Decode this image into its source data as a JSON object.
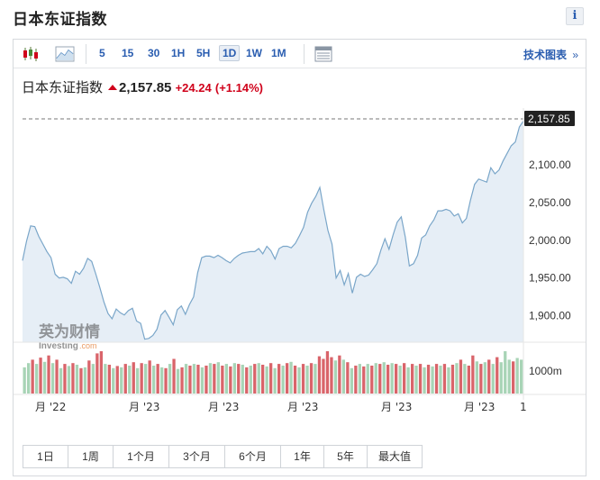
{
  "page": {
    "title": "日本东证指数",
    "info_label": "i"
  },
  "toolbar": {
    "intervals": [
      "5",
      "15",
      "30",
      "1H",
      "5H",
      "1D",
      "1W",
      "1M"
    ],
    "active_interval": "1D",
    "right_link": "技术图表",
    "right_link_arrow": "»",
    "icons": [
      "candlestick-icon",
      "area-chart-icon",
      "table-view-icon"
    ]
  },
  "quote": {
    "name": "日本东证指数",
    "price": "2,157.85",
    "change": "+24.24",
    "change_pct": "(+1.14%)",
    "direction": "up"
  },
  "watermark": {
    "brand": "英为财情",
    "brand_en": "Investing",
    "brand_suffix": ".com"
  },
  "colors": {
    "accent": "#2a5db0",
    "line": "#7aa6c9",
    "area": "#e6eef6",
    "up": "#d0021b",
    "bar_red": "#d9646a",
    "bar_green": "#a8d4b6"
  },
  "chart_data": {
    "type": "area",
    "title": "",
    "last_label": "2,157.85",
    "y_ticks": [
      "2,100.00",
      "2,050.00",
      "2,000.00",
      "1,950.00",
      "1,900.00"
    ],
    "ylim": [
      1865,
      2175
    ],
    "volume_label": "1000m",
    "x_tick_labels": [
      "月 '22",
      "月 '23",
      "月 '23",
      "月 '23",
      "月 '23",
      "月 '23",
      "1"
    ],
    "series": [
      {
        "values": [
          1973,
          1999,
          2019,
          2018,
          2005,
          1995,
          1985,
          1977,
          1955,
          1950,
          1951,
          1949,
          1943,
          1959,
          1955,
          1963,
          1976,
          1972,
          1955,
          1937,
          1918,
          1903,
          1896,
          1909,
          1904,
          1901,
          1907,
          1910,
          1893,
          1890,
          1869,
          1870,
          1874,
          1882,
          1901,
          1907,
          1898,
          1888,
          1908,
          1913,
          1902,
          1915,
          1925,
          1957,
          1977,
          1979,
          1979,
          1977,
          1980,
          1977,
          1973,
          1970,
          1976,
          1980,
          1983,
          1984,
          1985,
          1985,
          1989,
          1982,
          1992,
          1986,
          1975,
          1989,
          1992,
          1992,
          1990,
          1996,
          2006,
          2017,
          2037,
          2049,
          2058,
          2070,
          2040,
          2013,
          1995,
          1950,
          1960,
          1941,
          1956,
          1930,
          1951,
          1955,
          1952,
          1954,
          1961,
          1969,
          1987,
          2002,
          1988,
          2007,
          2024,
          2031,
          2004,
          1966,
          1969,
          1980,
          2003,
          2007,
          2019,
          2027,
          2039,
          2039,
          2041,
          2039,
          2032,
          2035,
          2023,
          2029,
          2053,
          2074,
          2081,
          2079,
          2077,
          2096,
          2088,
          2093,
          2105,
          2115,
          2125,
          2130,
          2150,
          2157.85
        ]
      }
    ],
    "volume": [
      {
        "v": 0.62,
        "c": "g"
      },
      {
        "v": 0.72,
        "c": "g"
      },
      {
        "v": 0.8,
        "c": "r"
      },
      {
        "v": 0.7,
        "c": "g"
      },
      {
        "v": 0.85,
        "c": "r"
      },
      {
        "v": 0.75,
        "c": "g"
      },
      {
        "v": 0.9,
        "c": "r"
      },
      {
        "v": 0.72,
        "c": "g"
      },
      {
        "v": 0.8,
        "c": "r"
      },
      {
        "v": 0.6,
        "c": "g"
      },
      {
        "v": 0.7,
        "c": "r"
      },
      {
        "v": 0.65,
        "c": "g"
      },
      {
        "v": 0.72,
        "c": "r"
      },
      {
        "v": 0.68,
        "c": "g"
      },
      {
        "v": 0.6,
        "c": "r"
      },
      {
        "v": 0.62,
        "c": "g"
      },
      {
        "v": 0.78,
        "c": "r"
      },
      {
        "v": 0.7,
        "c": "g"
      },
      {
        "v": 0.95,
        "c": "r"
      },
      {
        "v": 1.0,
        "c": "r"
      },
      {
        "v": 0.7,
        "c": "g"
      },
      {
        "v": 0.68,
        "c": "r"
      },
      {
        "v": 0.6,
        "c": "g"
      },
      {
        "v": 0.65,
        "c": "r"
      },
      {
        "v": 0.62,
        "c": "g"
      },
      {
        "v": 0.7,
        "c": "r"
      },
      {
        "v": 0.66,
        "c": "g"
      },
      {
        "v": 0.74,
        "c": "r"
      },
      {
        "v": 0.6,
        "c": "g"
      },
      {
        "v": 0.72,
        "c": "r"
      },
      {
        "v": 0.7,
        "c": "g"
      },
      {
        "v": 0.78,
        "c": "r"
      },
      {
        "v": 0.66,
        "c": "g"
      },
      {
        "v": 0.7,
        "c": "r"
      },
      {
        "v": 0.62,
        "c": "g"
      },
      {
        "v": 0.6,
        "c": "r"
      },
      {
        "v": 0.7,
        "c": "g"
      },
      {
        "v": 0.82,
        "c": "r"
      },
      {
        "v": 0.58,
        "c": "g"
      },
      {
        "v": 0.62,
        "c": "r"
      },
      {
        "v": 0.7,
        "c": "g"
      },
      {
        "v": 0.66,
        "c": "r"
      },
      {
        "v": 0.7,
        "c": "g"
      },
      {
        "v": 0.68,
        "c": "r"
      },
      {
        "v": 0.62,
        "c": "g"
      },
      {
        "v": 0.66,
        "c": "r"
      },
      {
        "v": 0.72,
        "c": "g"
      },
      {
        "v": 0.7,
        "c": "r"
      },
      {
        "v": 0.74,
        "c": "g"
      },
      {
        "v": 0.66,
        "c": "r"
      },
      {
        "v": 0.7,
        "c": "g"
      },
      {
        "v": 0.64,
        "c": "r"
      },
      {
        "v": 0.72,
        "c": "g"
      },
      {
        "v": 0.7,
        "c": "r"
      },
      {
        "v": 0.68,
        "c": "g"
      },
      {
        "v": 0.62,
        "c": "r"
      },
      {
        "v": 0.66,
        "c": "g"
      },
      {
        "v": 0.7,
        "c": "r"
      },
      {
        "v": 0.72,
        "c": "g"
      },
      {
        "v": 0.68,
        "c": "r"
      },
      {
        "v": 0.64,
        "c": "g"
      },
      {
        "v": 0.72,
        "c": "r"
      },
      {
        "v": 0.6,
        "c": "g"
      },
      {
        "v": 0.7,
        "c": "r"
      },
      {
        "v": 0.66,
        "c": "g"
      },
      {
        "v": 0.72,
        "c": "r"
      },
      {
        "v": 0.75,
        "c": "g"
      },
      {
        "v": 0.66,
        "c": "r"
      },
      {
        "v": 0.62,
        "c": "g"
      },
      {
        "v": 0.7,
        "c": "r"
      },
      {
        "v": 0.66,
        "c": "g"
      },
      {
        "v": 0.72,
        "c": "r"
      },
      {
        "v": 0.7,
        "c": "g"
      },
      {
        "v": 0.88,
        "c": "r"
      },
      {
        "v": 0.82,
        "c": "r"
      },
      {
        "v": 1.0,
        "c": "r"
      },
      {
        "v": 0.86,
        "c": "r"
      },
      {
        "v": 0.78,
        "c": "g"
      },
      {
        "v": 0.9,
        "c": "r"
      },
      {
        "v": 0.8,
        "c": "g"
      },
      {
        "v": 0.74,
        "c": "r"
      },
      {
        "v": 0.6,
        "c": "g"
      },
      {
        "v": 0.66,
        "c": "r"
      },
      {
        "v": 0.7,
        "c": "g"
      },
      {
        "v": 0.64,
        "c": "r"
      },
      {
        "v": 0.7,
        "c": "g"
      },
      {
        "v": 0.66,
        "c": "r"
      },
      {
        "v": 0.72,
        "c": "g"
      },
      {
        "v": 0.7,
        "c": "r"
      },
      {
        "v": 0.74,
        "c": "g"
      },
      {
        "v": 0.68,
        "c": "r"
      },
      {
        "v": 0.72,
        "c": "g"
      },
      {
        "v": 0.7,
        "c": "r"
      },
      {
        "v": 0.66,
        "c": "g"
      },
      {
        "v": 0.72,
        "c": "r"
      },
      {
        "v": 0.62,
        "c": "g"
      },
      {
        "v": 0.7,
        "c": "r"
      },
      {
        "v": 0.66,
        "c": "g"
      },
      {
        "v": 0.7,
        "c": "r"
      },
      {
        "v": 0.62,
        "c": "g"
      },
      {
        "v": 0.68,
        "c": "r"
      },
      {
        "v": 0.64,
        "c": "g"
      },
      {
        "v": 0.7,
        "c": "r"
      },
      {
        "v": 0.66,
        "c": "g"
      },
      {
        "v": 0.7,
        "c": "r"
      },
      {
        "v": 0.62,
        "c": "g"
      },
      {
        "v": 0.68,
        "c": "r"
      },
      {
        "v": 0.72,
        "c": "g"
      },
      {
        "v": 0.8,
        "c": "r"
      },
      {
        "v": 0.7,
        "c": "g"
      },
      {
        "v": 0.66,
        "c": "r"
      },
      {
        "v": 0.9,
        "c": "r"
      },
      {
        "v": 0.76,
        "c": "g"
      },
      {
        "v": 0.7,
        "c": "r"
      },
      {
        "v": 0.74,
        "c": "g"
      },
      {
        "v": 0.8,
        "c": "r"
      },
      {
        "v": 0.7,
        "c": "g"
      },
      {
        "v": 0.86,
        "c": "r"
      },
      {
        "v": 0.74,
        "c": "g"
      },
      {
        "v": 1.0,
        "c": "g"
      },
      {
        "v": 0.8,
        "c": "g"
      },
      {
        "v": 0.76,
        "c": "r"
      },
      {
        "v": 0.84,
        "c": "g"
      },
      {
        "v": 0.8,
        "c": "g"
      }
    ]
  },
  "ranges": [
    {
      "label": "1日",
      "w": 50
    },
    {
      "label": "1周",
      "w": 50
    },
    {
      "label": "1个月",
      "w": 62
    },
    {
      "label": "3个月",
      "w": 62
    },
    {
      "label": "6个月",
      "w": 62
    },
    {
      "label": "1年",
      "w": 48
    },
    {
      "label": "5年",
      "w": 48
    },
    {
      "label": "最大值",
      "w": 60
    }
  ]
}
